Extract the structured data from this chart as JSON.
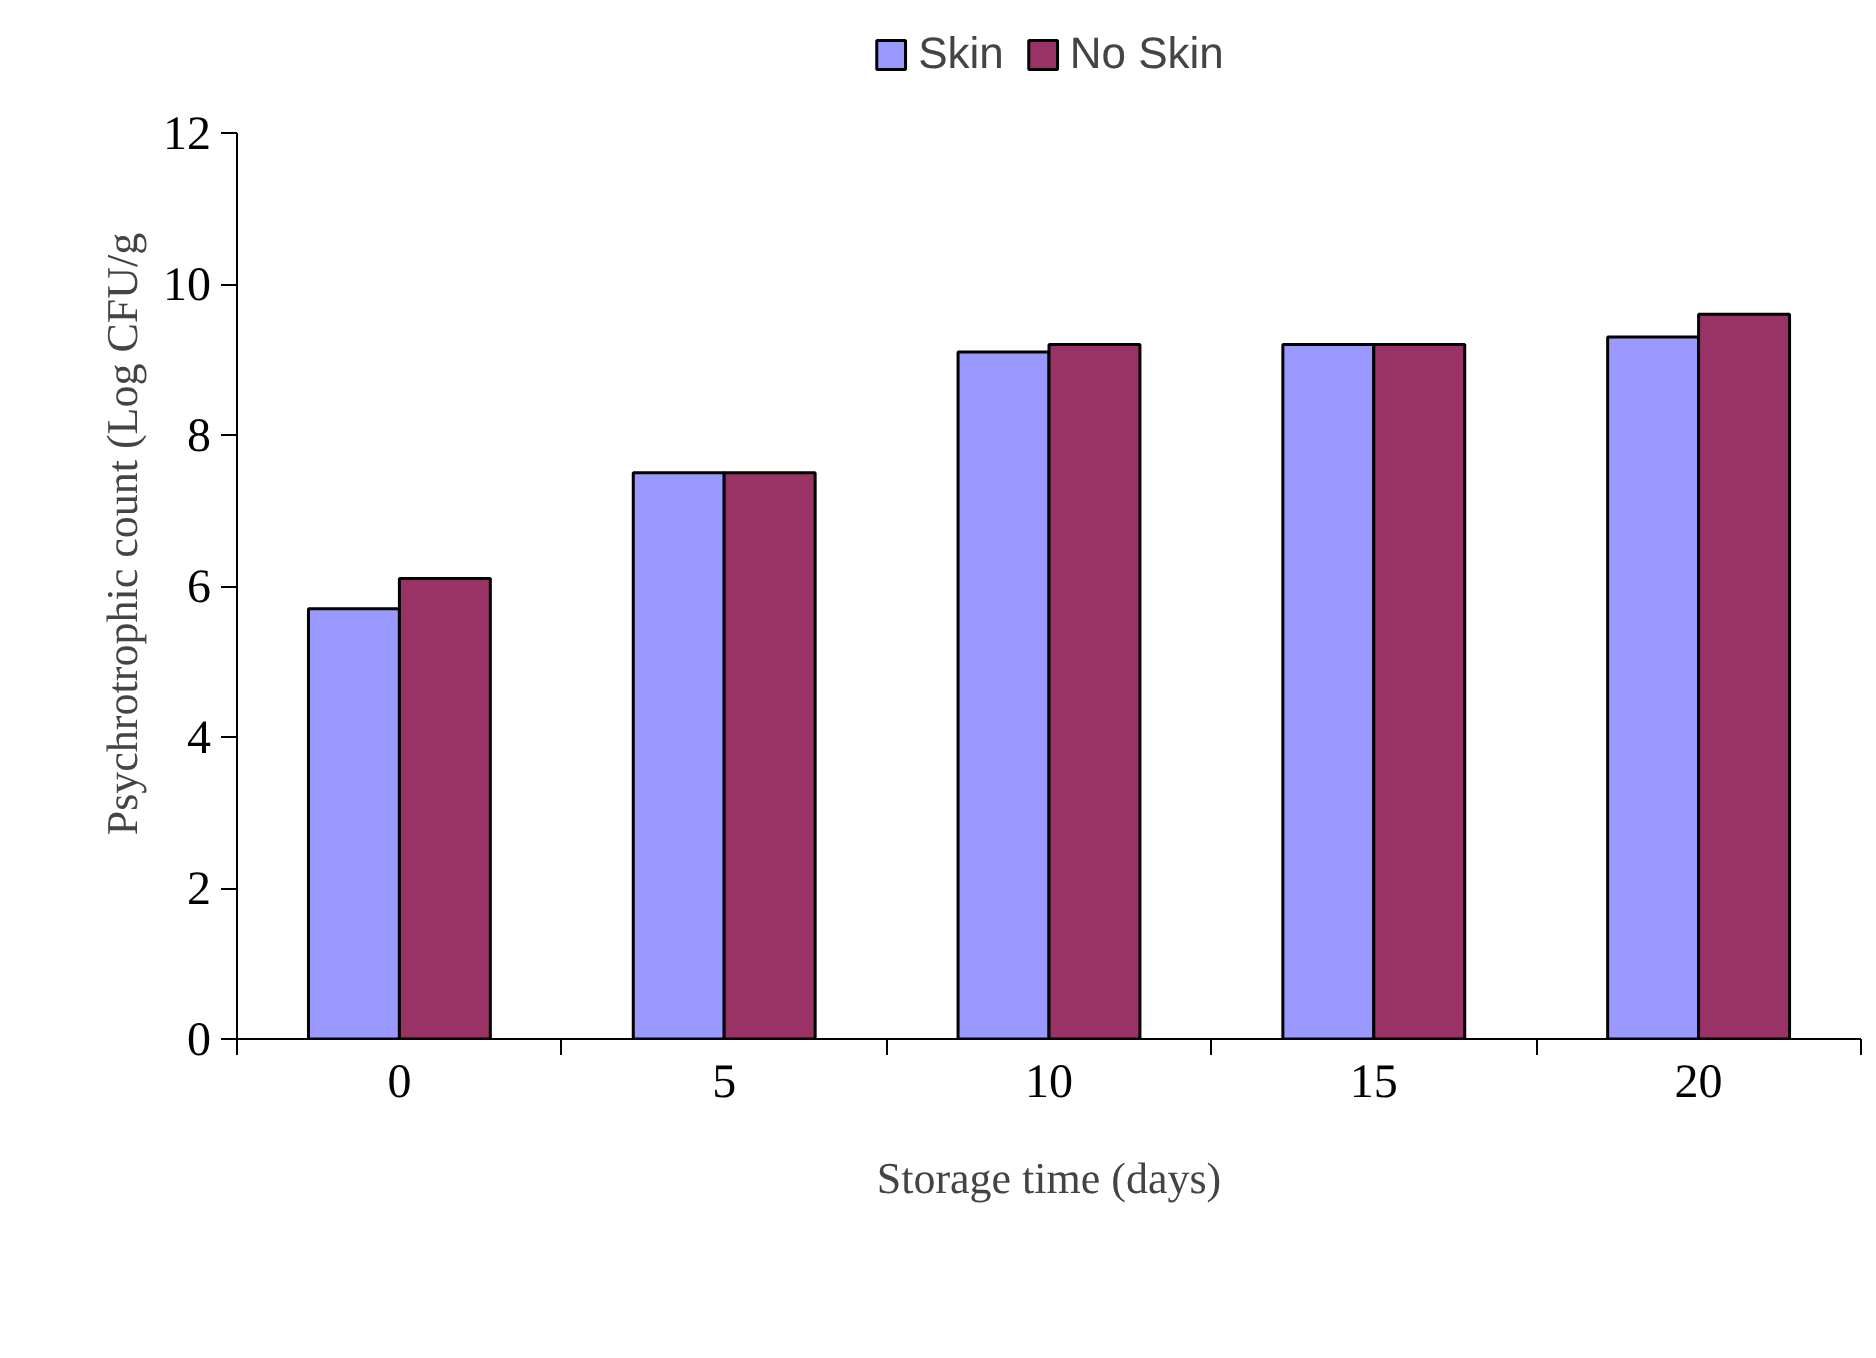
{
  "chart_data": {
    "type": "bar",
    "xlabel": "Storage time (days)",
    "ylabel": "Psychrotrophic count (Log CFU/g",
    "categories": [
      "0",
      "5",
      "10",
      "15",
      "20"
    ],
    "series": [
      {
        "name": "Skin",
        "color": "#9999ff",
        "values": [
          5.7,
          7.5,
          9.1,
          9.2,
          9.3
        ]
      },
      {
        "name": "No Skin",
        "color": "#993366",
        "values": [
          6.1,
          7.5,
          9.2,
          9.2,
          9.6
        ]
      }
    ],
    "ylim": [
      0,
      12
    ],
    "yticks": [
      0,
      2,
      4,
      6,
      8,
      10,
      12
    ],
    "grid": false,
    "legend": "top"
  }
}
